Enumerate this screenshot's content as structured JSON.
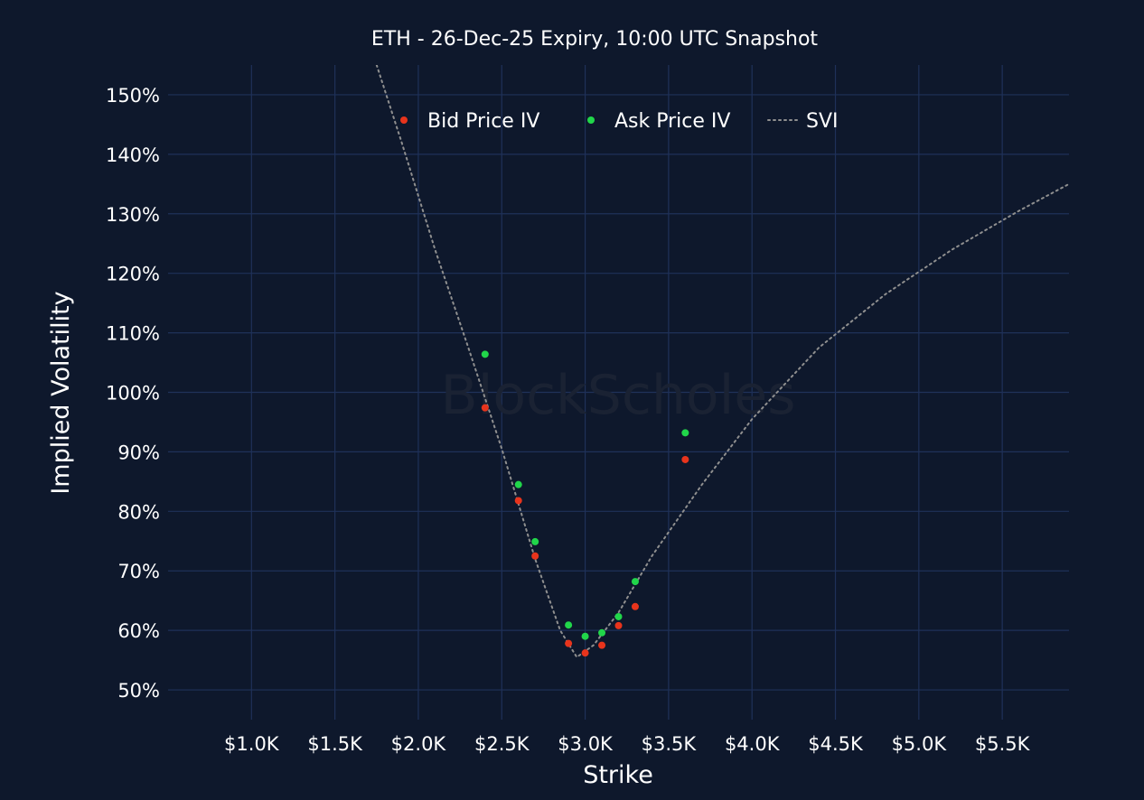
{
  "chart_data": {
    "type": "scatter",
    "title": "ETH - 26-Dec-25 Expiry, 10:00 UTC Snapshot",
    "xlabel": "Strike",
    "ylabel": "Implied Volatility",
    "watermark": "BlockScholes",
    "xlim": [
      500,
      5900
    ],
    "ylim": [
      45,
      155
    ],
    "x_ticks": [
      {
        "value": 1000,
        "label": "$1.0K"
      },
      {
        "value": 1500,
        "label": "$1.5K"
      },
      {
        "value": 2000,
        "label": "$2.0K"
      },
      {
        "value": 2500,
        "label": "$2.5K"
      },
      {
        "value": 3000,
        "label": "$3.0K"
      },
      {
        "value": 3500,
        "label": "$3.5K"
      },
      {
        "value": 4000,
        "label": "$4.0K"
      },
      {
        "value": 4500,
        "label": "$4.5K"
      },
      {
        "value": 5000,
        "label": "$5.0K"
      },
      {
        "value": 5500,
        "label": "$5.5K"
      }
    ],
    "y_ticks": [
      {
        "value": 50,
        "label": "50%"
      },
      {
        "value": 60,
        "label": "60%"
      },
      {
        "value": 70,
        "label": "70%"
      },
      {
        "value": 80,
        "label": "80%"
      },
      {
        "value": 90,
        "label": "90%"
      },
      {
        "value": 100,
        "label": "100%"
      },
      {
        "value": 110,
        "label": "110%"
      },
      {
        "value": 120,
        "label": "120%"
      },
      {
        "value": 130,
        "label": "130%"
      },
      {
        "value": 140,
        "label": "140%"
      },
      {
        "value": 150,
        "label": "150%"
      }
    ],
    "grid": true,
    "legend_position": "top-center",
    "series": [
      {
        "name": "Bid Price IV",
        "kind": "scatter",
        "color": "#e8341c",
        "x": [
          2400,
          2600,
          2700,
          2900,
          3000,
          3100,
          3200,
          3300,
          3600
        ],
        "y": [
          97.4,
          81.8,
          72.5,
          57.8,
          56.2,
          57.5,
          60.8,
          64.0,
          88.7
        ]
      },
      {
        "name": "Ask Price IV",
        "kind": "scatter",
        "color": "#21d64a",
        "x": [
          2400,
          2600,
          2700,
          2900,
          3000,
          3100,
          3200,
          3300,
          3600
        ],
        "y": [
          106.4,
          84.5,
          74.9,
          60.9,
          59.0,
          59.6,
          62.3,
          68.2,
          93.2
        ]
      },
      {
        "name": "SVI",
        "kind": "line",
        "style": "dotted",
        "color": "#8f8f8f",
        "x": [
          1750,
          1900,
          2100,
          2300,
          2500,
          2700,
          2850,
          2950,
          3050,
          3200,
          3400,
          3700,
          4000,
          4400,
          4800,
          5200,
          5600,
          5900
        ],
        "y": [
          155,
          142,
          124,
          107.5,
          90.5,
          72,
          60,
          55.5,
          57.5,
          63,
          72.5,
          84.5,
          95.5,
          107.5,
          116.5,
          124,
          130.5,
          135
        ]
      }
    ]
  }
}
